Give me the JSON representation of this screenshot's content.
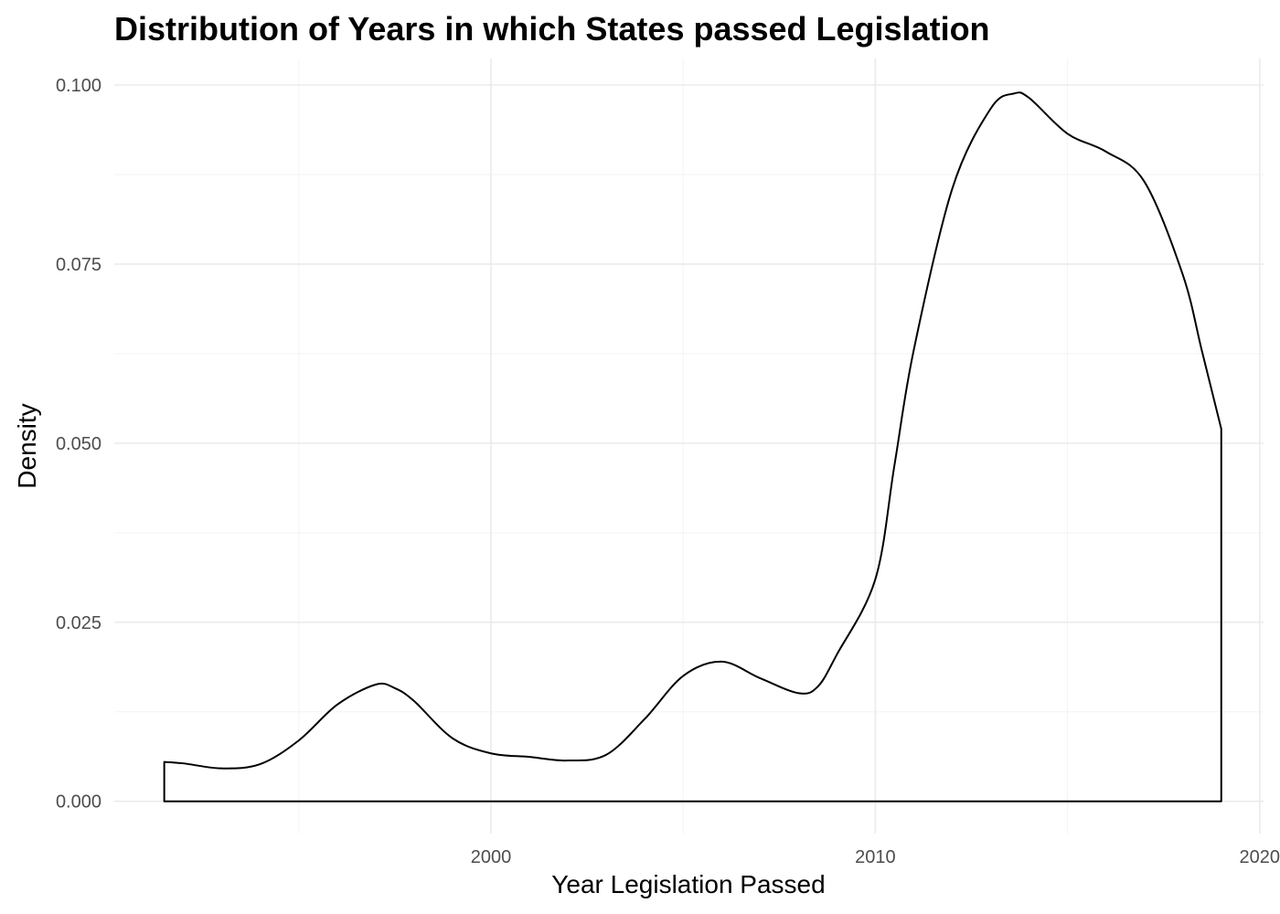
{
  "chart_data": {
    "type": "area",
    "title": "Distribution of Years in which States passed Legislation",
    "xlabel": "Year Legislation Passed",
    "ylabel": "Density",
    "xlim": [
      1990.2,
      2020.1
    ],
    "ylim": [
      -0.0045,
      0.1037
    ],
    "x_ticks": [
      2000,
      2010,
      2020
    ],
    "x_tick_labels": [
      "2000",
      "2010",
      "2020"
    ],
    "x_minor_ticks": [
      1995,
      2005,
      2015
    ],
    "y_ticks": [
      0.0,
      0.025,
      0.05,
      0.075,
      0.1
    ],
    "y_tick_labels": [
      "0.000",
      "0.025",
      "0.050",
      "0.075",
      "0.100"
    ],
    "y_minor_ticks": [
      0.0125,
      0.0375,
      0.0625,
      0.0875
    ],
    "grid": true,
    "legend": "none",
    "fill": "none",
    "outline_color": "#000000",
    "series": [
      {
        "x": [
          1991.5,
          1992.0,
          1993.0,
          1994.0,
          1995.0,
          1996.0,
          1997.0,
          1997.5,
          1998.0,
          1999.0,
          2000.0,
          2001.0,
          2002.0,
          2003.0,
          2004.0,
          2005.0,
          2006.0,
          2007.0,
          2008.0,
          2008.5,
          2009.0,
          2010.0,
          2010.5,
          2011.0,
          2012.0,
          2013.0,
          2013.6,
          2014.0,
          2015.0,
          2016.0,
          2017.0,
          2018.0,
          2018.5,
          2019.0
        ],
        "y": [
          0.0055,
          0.0053,
          0.0046,
          0.0052,
          0.0085,
          0.0135,
          0.0163,
          0.0158,
          0.014,
          0.0088,
          0.0067,
          0.0062,
          0.0057,
          0.0065,
          0.0115,
          0.0175,
          0.0195,
          0.0172,
          0.0151,
          0.016,
          0.0205,
          0.031,
          0.047,
          0.063,
          0.0855,
          0.0967,
          0.0988,
          0.0982,
          0.0932,
          0.0907,
          0.0865,
          0.0735,
          0.0628,
          0.052
        ]
      }
    ]
  }
}
